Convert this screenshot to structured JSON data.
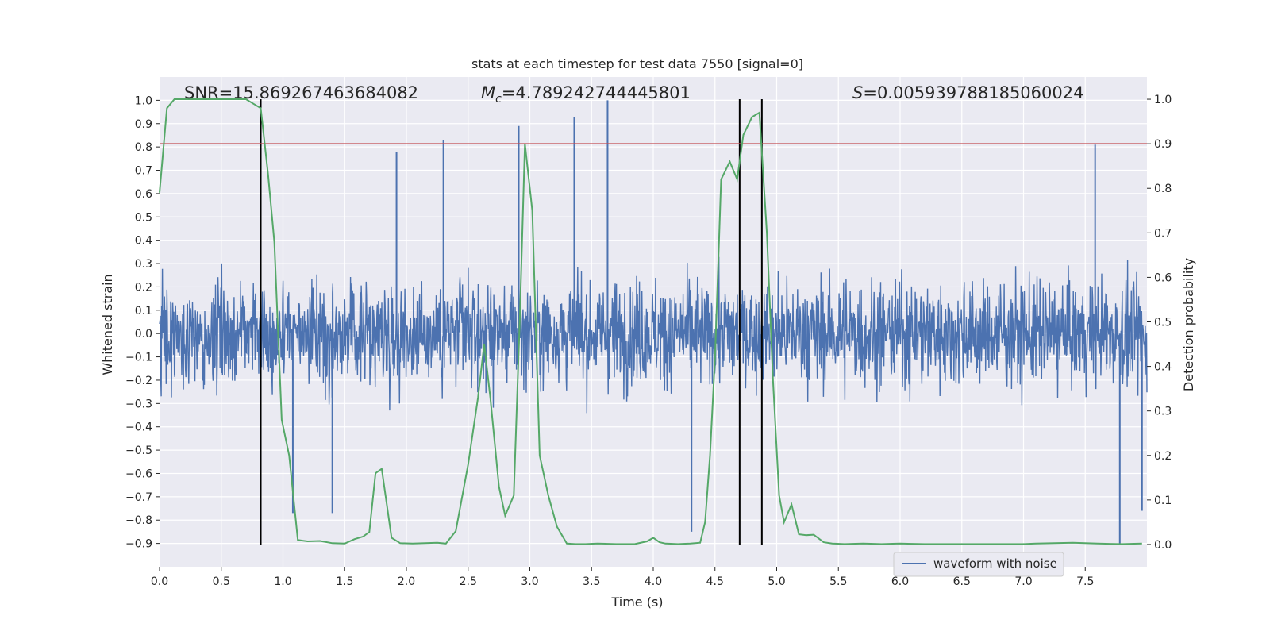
{
  "chart_data": {
    "type": "line",
    "title": "stats at each timestep for test data 7550 [signal=0]",
    "xlabel": "Time (s)",
    "ylabel": "Whitened strain",
    "y2label": "Detection probability",
    "xlim": [
      0.0,
      8.0
    ],
    "ylim": [
      -1.0,
      1.1
    ],
    "y2lim": [
      -0.05,
      1.05
    ],
    "x_ticks": [
      0.0,
      0.5,
      1.0,
      1.5,
      2.0,
      2.5,
      3.0,
      3.5,
      4.0,
      4.5,
      5.0,
      5.5,
      6.0,
      6.5,
      7.0,
      7.5
    ],
    "x_tick_labels": [
      "0.0",
      "0.5",
      "1.0",
      "1.5",
      "2.0",
      "2.5",
      "3.0",
      "3.5",
      "4.0",
      "4.5",
      "5.0",
      "5.5",
      "6.0",
      "6.5",
      "7.0",
      "7.5"
    ],
    "y_ticks": [
      -0.9,
      -0.8,
      -0.7,
      -0.6,
      -0.5,
      -0.4,
      -0.3,
      -0.2,
      -0.1,
      0.0,
      0.1,
      0.2,
      0.3,
      0.4,
      0.5,
      0.6,
      0.7,
      0.8,
      0.9,
      1.0
    ],
    "y_tick_labels": [
      "−0.9",
      "−0.8",
      "−0.7",
      "−0.6",
      "−0.5",
      "−0.4",
      "−0.3",
      "−0.2",
      "−0.1",
      "0.0",
      "0.1",
      "0.2",
      "0.3",
      "0.4",
      "0.5",
      "0.6",
      "0.7",
      "0.8",
      "0.9",
      "1.0"
    ],
    "y2_ticks": [
      0.0,
      0.1,
      0.2,
      0.3,
      0.4,
      0.5,
      0.6,
      0.7,
      0.8,
      0.9,
      1.0
    ],
    "y2_tick_labels": [
      "0.0",
      "0.1",
      "0.2",
      "0.3",
      "0.4",
      "0.5",
      "0.6",
      "0.7",
      "0.8",
      "0.9",
      "1.0"
    ],
    "grid": true,
    "legend": {
      "entries": [
        "waveform with noise"
      ],
      "placement": "lower-right"
    },
    "annotations": {
      "snr": "SNR=15.869267463684082",
      "mc_symbol": "M",
      "mc_sub": "c",
      "mc_value": "=4.789242744445801",
      "s_symbol": "S",
      "s_value": "=0.005939788185060024"
    },
    "threshold_probability": 0.9,
    "vertical_markers_time": [
      0.82,
      4.7,
      4.88
    ],
    "waveform": {
      "name": "waveform with noise",
      "duration_s": 8.0,
      "approx_envelope_upper": 0.45,
      "approx_envelope_lower": -0.45,
      "notable_peaks": [
        {
          "t": 2.3,
          "y": 0.83
        },
        {
          "t": 2.91,
          "y": 0.89
        },
        {
          "t": 3.36,
          "y": 0.93
        },
        {
          "t": 3.63,
          "y": 1.0
        },
        {
          "t": 1.92,
          "y": 0.78
        },
        {
          "t": 7.58,
          "y": 0.81
        }
      ],
      "notable_troughs": [
        {
          "t": 7.78,
          "y": -0.9
        },
        {
          "t": 4.31,
          "y": -0.85
        },
        {
          "t": 1.4,
          "y": -0.77
        },
        {
          "t": 1.08,
          "y": -0.77
        },
        {
          "t": 7.96,
          "y": -0.76
        }
      ]
    },
    "series": [
      {
        "name": "detection probability",
        "color": "#55a868",
        "x": [
          0.0,
          0.06,
          0.12,
          0.2,
          0.3,
          0.4,
          0.5,
          0.6,
          0.7,
          0.76,
          0.82,
          0.88,
          0.93,
          0.99,
          1.05,
          1.12,
          1.2,
          1.3,
          1.4,
          1.5,
          1.58,
          1.65,
          1.7,
          1.75,
          1.8,
          1.88,
          1.95,
          2.05,
          2.15,
          2.25,
          2.32,
          2.4,
          2.5,
          2.58,
          2.63,
          2.68,
          2.75,
          2.8,
          2.87,
          2.92,
          2.96,
          3.02,
          3.08,
          3.15,
          3.22,
          3.3,
          3.37,
          3.45,
          3.55,
          3.7,
          3.85,
          3.95,
          4.0,
          4.05,
          4.1,
          4.2,
          4.3,
          4.38,
          4.42,
          4.46,
          4.5,
          4.55,
          4.62,
          4.68,
          4.73,
          4.8,
          4.86,
          4.92,
          4.97,
          5.02,
          5.06,
          5.12,
          5.18,
          5.24,
          5.3,
          5.38,
          5.45,
          5.55,
          5.7,
          5.85,
          6.0,
          6.2,
          6.5,
          6.8,
          7.0,
          7.1,
          7.25,
          7.4,
          7.6,
          7.8,
          7.96
        ],
        "values": [
          0.79,
          0.98,
          1.0,
          1.0,
          1.0,
          1.0,
          1.0,
          1.0,
          1.0,
          0.99,
          0.98,
          0.83,
          0.68,
          0.28,
          0.2,
          0.01,
          0.007,
          0.008,
          0.003,
          0.002,
          0.012,
          0.018,
          0.028,
          0.16,
          0.17,
          0.015,
          0.003,
          0.002,
          0.003,
          0.004,
          0.002,
          0.03,
          0.18,
          0.33,
          0.45,
          0.33,
          0.13,
          0.065,
          0.11,
          0.52,
          0.9,
          0.75,
          0.2,
          0.11,
          0.04,
          0.002,
          0.001,
          0.001,
          0.002,
          0.001,
          0.001,
          0.007,
          0.015,
          0.005,
          0.002,
          0.001,
          0.002,
          0.004,
          0.05,
          0.2,
          0.42,
          0.82,
          0.86,
          0.82,
          0.92,
          0.96,
          0.97,
          0.7,
          0.37,
          0.11,
          0.05,
          0.09,
          0.023,
          0.021,
          0.022,
          0.005,
          0.002,
          0.001,
          0.002,
          0.001,
          0.002,
          0.001,
          0.001,
          0.001,
          0.001,
          0.002,
          0.003,
          0.004,
          0.002,
          0.001,
          0.002
        ]
      }
    ]
  },
  "colors": {
    "waveform": "#4c72b0",
    "probability": "#55a868",
    "threshold": "#c44e52",
    "axes_bg": "#eaeaf2",
    "grid": "#ffffff",
    "marker": "#000000"
  }
}
